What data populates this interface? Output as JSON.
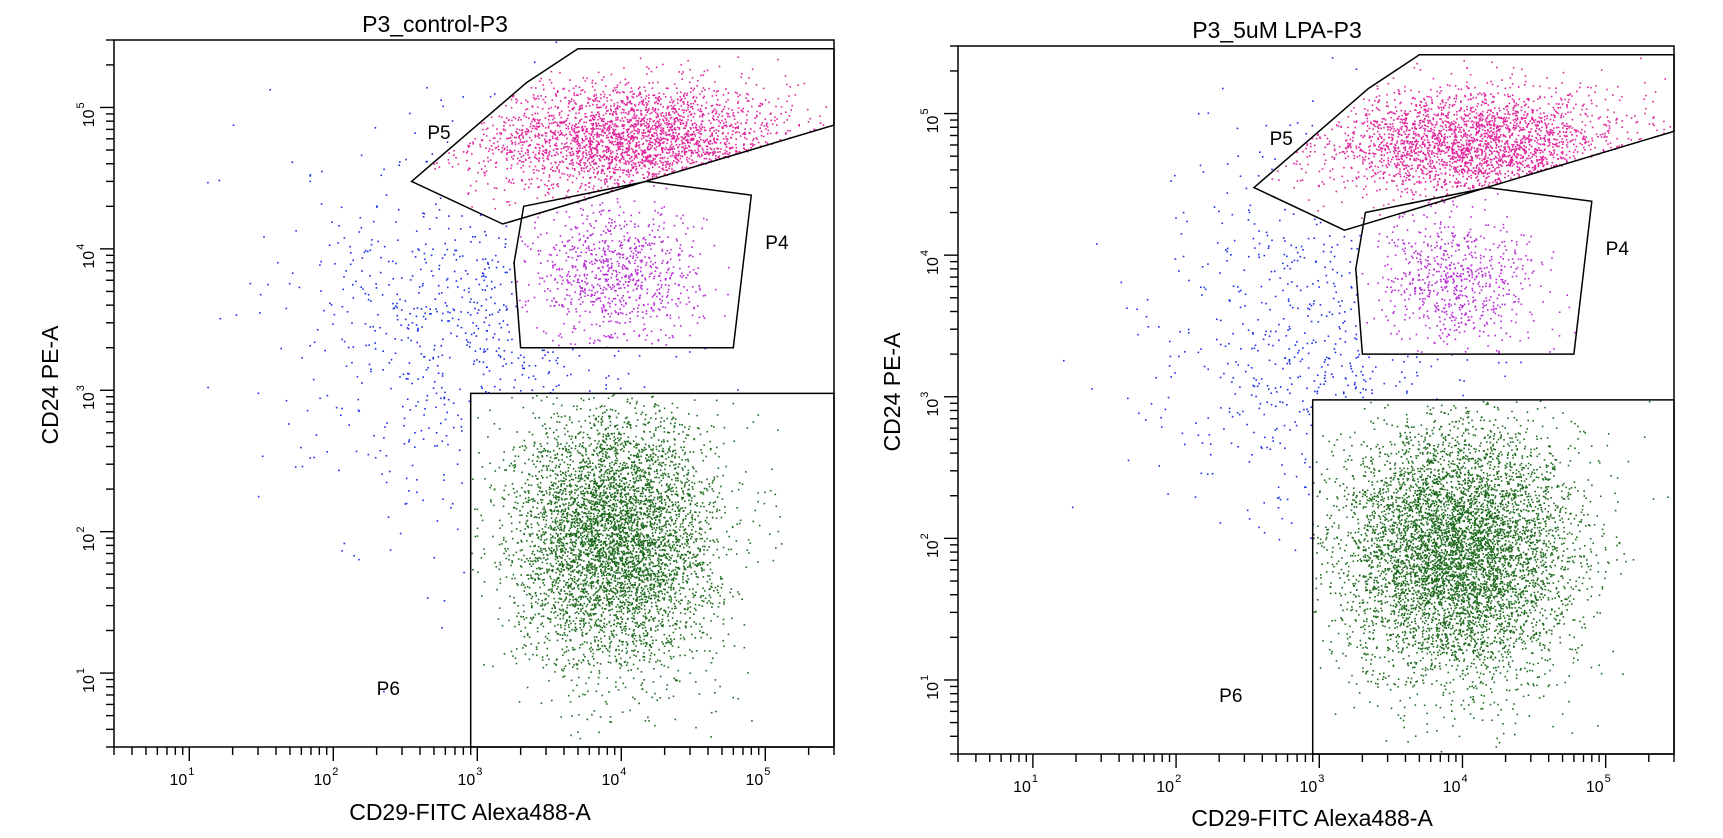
{
  "chart_data": [
    {
      "type": "scatter",
      "title": "P3_control-P3",
      "xlabel": "CD29-FITC Alexa488-A",
      "ylabel": "CD24 PE-A",
      "x_scale": "log",
      "y_scale": "log",
      "xlim": [
        3,
        300000
      ],
      "ylim": [
        3,
        300000
      ],
      "x_ticks": [
        {
          "base": "10",
          "exp": "1",
          "value": 10
        },
        {
          "base": "10",
          "exp": "2",
          "value": 100
        },
        {
          "base": "10",
          "exp": "3",
          "value": 1000
        },
        {
          "base": "10",
          "exp": "4",
          "value": 10000
        },
        {
          "base": "10",
          "exp": "5",
          "value": 100000
        }
      ],
      "y_ticks": [
        {
          "base": "10",
          "exp": "1",
          "value": 10
        },
        {
          "base": "10",
          "exp": "2",
          "value": 100
        },
        {
          "base": "10",
          "exp": "3",
          "value": 1000
        },
        {
          "base": "10",
          "exp": "4",
          "value": 10000
        },
        {
          "base": "10",
          "exp": "5",
          "value": 100000
        }
      ],
      "gates": [
        {
          "name": "P5",
          "color": "#e0259c",
          "label_at": [
            450,
            60000
          ],
          "vertices": [
            [
              350,
              30000
            ],
            [
              2200,
              150000
            ],
            [
              5000,
              260000
            ],
            [
              300000,
              260000
            ],
            [
              300000,
              75000
            ],
            [
              1500,
              15000
            ]
          ]
        },
        {
          "name": "P4",
          "color": "#b82ad6",
          "label_at": [
            100000,
            10000
          ],
          "vertices": [
            [
              2100,
              20000
            ],
            [
              15000,
              30000
            ],
            [
              80000,
              24000
            ],
            [
              60000,
              2000
            ],
            [
              2000,
              2000
            ],
            [
              1800,
              8000
            ]
          ]
        },
        {
          "name": "P6",
          "color": "#1e6b1e",
          "label_at": [
            200,
            7
          ],
          "vertices": [
            [
              900,
              3
            ],
            [
              300000,
              3
            ],
            [
              300000,
              950
            ],
            [
              900,
              950
            ]
          ]
        }
      ],
      "populations": [
        {
          "gate": "P5",
          "color": "#e0259c",
          "count": 2600,
          "center": [
            12000,
            60000
          ],
          "spread": [
            0.55,
            0.2
          ]
        },
        {
          "gate": "P4",
          "color": "#b82ad6",
          "count": 850,
          "center": [
            9000,
            6500
          ],
          "spread": [
            0.3,
            0.25
          ]
        },
        {
          "gate": "P6",
          "color": "#1e6b1e",
          "count": 5200,
          "center": [
            9000,
            90
          ],
          "spread": [
            0.35,
            0.45
          ]
        },
        {
          "gate": "none",
          "color": "#1a2ee8",
          "count": 600,
          "center": [
            1000,
            3000
          ],
          "spread": [
            0.6,
            0.7
          ]
        }
      ]
    },
    {
      "type": "scatter",
      "title": "P3_5uM LPA-P3",
      "xlabel": "CD29-FITC Alexa488-A",
      "ylabel": "CD24 PE-A",
      "x_scale": "log",
      "y_scale": "log",
      "xlim": [
        3,
        300000
      ],
      "ylim": [
        3,
        300000
      ],
      "x_ticks": [
        {
          "base": "10",
          "exp": "1",
          "value": 10
        },
        {
          "base": "10",
          "exp": "2",
          "value": 100
        },
        {
          "base": "10",
          "exp": "3",
          "value": 1000
        },
        {
          "base": "10",
          "exp": "4",
          "value": 10000
        },
        {
          "base": "10",
          "exp": "5",
          "value": 100000
        }
      ],
      "y_ticks": [
        {
          "base": "10",
          "exp": "1",
          "value": 10
        },
        {
          "base": "10",
          "exp": "2",
          "value": 100
        },
        {
          "base": "10",
          "exp": "3",
          "value": 1000
        },
        {
          "base": "10",
          "exp": "4",
          "value": 10000
        },
        {
          "base": "10",
          "exp": "5",
          "value": 100000
        }
      ],
      "gates": [
        {
          "name": "P5",
          "color": "#e0259c",
          "label_at": [
            450,
            60000
          ],
          "vertices": [
            [
              350,
              30000
            ],
            [
              2200,
              150000
            ],
            [
              5000,
              260000
            ],
            [
              300000,
              260000
            ],
            [
              300000,
              75000
            ],
            [
              1500,
              15000
            ]
          ]
        },
        {
          "name": "P4",
          "color": "#b82ad6",
          "label_at": [
            100000,
            10000
          ],
          "vertices": [
            [
              2100,
              20000
            ],
            [
              15000,
              30000
            ],
            [
              80000,
              24000
            ],
            [
              60000,
              2000
            ],
            [
              2000,
              2000
            ],
            [
              1800,
              8000
            ]
          ]
        },
        {
          "name": "P6",
          "color": "#1e6b1e",
          "label_at": [
            200,
            7
          ],
          "vertices": [
            [
              900,
              3
            ],
            [
              300000,
              3
            ],
            [
              300000,
              950
            ],
            [
              900,
              950
            ]
          ]
        }
      ],
      "populations": [
        {
          "gate": "P5",
          "color": "#e0259c",
          "count": 2500,
          "center": [
            12000,
            60000
          ],
          "spread": [
            0.55,
            0.2
          ]
        },
        {
          "gate": "P4",
          "color": "#b82ad6",
          "count": 700,
          "center": [
            9000,
            6500
          ],
          "spread": [
            0.3,
            0.25
          ]
        },
        {
          "gate": "P6",
          "color": "#1e6b1e",
          "count": 6200,
          "center": [
            9000,
            80
          ],
          "spread": [
            0.4,
            0.45
          ]
        },
        {
          "gate": "none",
          "color": "#1a2ee8",
          "count": 500,
          "center": [
            1000,
            3000
          ],
          "spread": [
            0.6,
            0.7
          ]
        }
      ]
    }
  ]
}
